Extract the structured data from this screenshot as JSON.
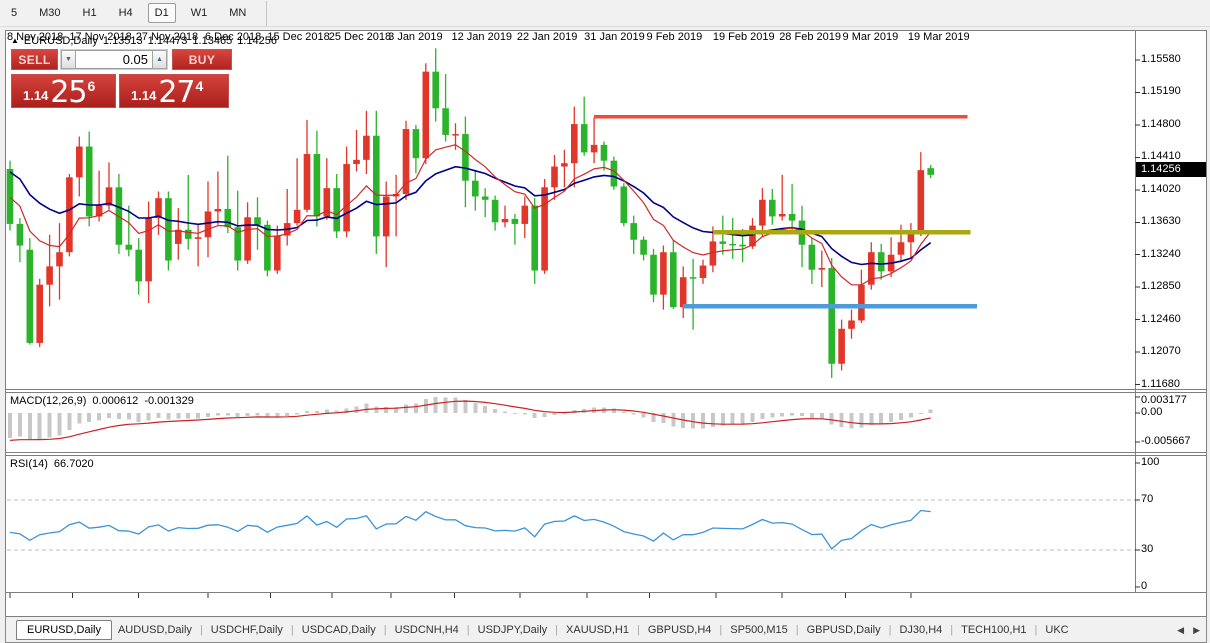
{
  "toolbar": {
    "timeframes": [
      "5",
      "M30",
      "H1",
      "H4",
      "D1",
      "W1",
      "MN"
    ],
    "active": "D1"
  },
  "chart_header": {
    "symbol": "EURUSD,Daily",
    "open": "1.13513",
    "high": "1.14473",
    "low": "1.13465",
    "close": "1.14256"
  },
  "trade_panel": {
    "sell_label": "SELL",
    "buy_label": "BUY",
    "volume": "0.05",
    "sell_price": {
      "prefix": "1.14",
      "big": "25",
      "sup": "6"
    },
    "buy_price": {
      "prefix": "1.14",
      "big": "27",
      "sup": "4"
    }
  },
  "price_axis": {
    "labels": [
      "1.15580",
      "1.15190",
      "1.14800",
      "1.14410",
      "1.14020",
      "1.13630",
      "1.13240",
      "1.12850",
      "1.12460",
      "1.12070",
      "1.11680"
    ],
    "current": "1.14256"
  },
  "macd_panel": {
    "label": "MACD(12,26,9)",
    "value_main": "0.000612",
    "value_signal": "-0.001329",
    "axis": [
      "0.003177",
      "0.00",
      "-0.005667"
    ]
  },
  "rsi_panel": {
    "label": "RSI(14)",
    "value": "66.7020",
    "axis": [
      "100",
      "70",
      "30",
      "0"
    ]
  },
  "time_axis": {
    "labels": [
      {
        "text": "8 Nov 2018",
        "bar": 0
      },
      {
        "text": "17 Nov 2018",
        "bar": 6.3
      },
      {
        "text": "27 Nov 2018",
        "bar": 13
      },
      {
        "text": "6 Dec 2018",
        "bar": 20
      },
      {
        "text": "15 Dec 2018",
        "bar": 26.3
      },
      {
        "text": "25 Dec 2018",
        "bar": 32.5
      },
      {
        "text": "3 Jan 2019",
        "bar": 38.5
      },
      {
        "text": "12 Jan 2019",
        "bar": 44.9
      },
      {
        "text": "22 Jan 2019",
        "bar": 51.5
      },
      {
        "text": "31 Jan 2019",
        "bar": 58.3
      },
      {
        "text": "9 Feb 2019",
        "bar": 64.6
      },
      {
        "text": "19 Feb 2019",
        "bar": 71.3
      },
      {
        "text": "28 Feb 2019",
        "bar": 78
      },
      {
        "text": "9 Mar 2019",
        "bar": 84.4
      },
      {
        "text": "19 Mar 2019",
        "bar": 91
      }
    ]
  },
  "tab_bar": {
    "tabs": [
      "EURUSD,Daily",
      "AUDUSD,Daily",
      "USDCHF,Daily",
      "USDCAD,Daily",
      "USDCNH,H4",
      "USDJPY,Daily",
      "XAUUSD,H1",
      "GBPUSD,H4",
      "SP500,M15",
      "GBPUSD,Daily",
      "DJ30,H4",
      "TECH100,H1",
      "UKC"
    ],
    "active": "EURUSD,Daily"
  },
  "colors": {
    "candle_up": "#e0372a",
    "candle_down": "#2bb32b",
    "ma_fast_red": "#d02828",
    "ma_slow_blue": "#000088",
    "macd_hist": "#c8c8c8",
    "macd_signal": "#cc2222",
    "rsi_line": "#3d93d8",
    "rsi_levels": "#bdbdbd",
    "trade_red": "#c7201e",
    "price_tag_bg": "#000000",
    "frame": "#7e7e7e"
  },
  "chart_data": {
    "type": "candlestick",
    "symbol": "EURUSD",
    "timeframe": "Daily",
    "last_ohlc": {
      "open": 1.13513,
      "high": 1.14473,
      "low": 1.13465,
      "close": 1.14256
    },
    "y_axis_visible_range": [
      1.1168,
      1.1558
    ],
    "overlays": {
      "ma_fast": {
        "type": "EMA",
        "period": 10
      },
      "ma_slow": {
        "type": "EMA",
        "period": 20
      }
    },
    "hlines": [
      {
        "name": "resistance",
        "price": 1.149,
        "from_bar": 59,
        "to_bar": 96.7,
        "color": "#f4483a",
        "width": 3.5
      },
      {
        "name": "pivot",
        "price": 1.1351,
        "from_bar": 71,
        "to_bar": 97.0,
        "color": "#a9a90e",
        "width": 4.5
      },
      {
        "name": "support",
        "price": 1.1262,
        "from_bar": 68,
        "to_bar": 97.7,
        "color": "#4d9bd8",
        "width": 4.5
      }
    ],
    "indicators": [
      {
        "name": "MACD",
        "params": [
          12,
          26,
          9
        ],
        "current_main": 0.000612,
        "current_signal": -0.001329,
        "window_max": 0.003177,
        "window_min": -0.005667
      },
      {
        "name": "RSI",
        "params": [
          14
        ],
        "current": 66.702,
        "levels": [
          70,
          30
        ]
      }
    ],
    "candles": [
      [
        "2018-11-08",
        1.1427,
        1.1437,
        1.1353,
        1.1361
      ],
      [
        "2018-11-09",
        1.1361,
        1.1368,
        1.1315,
        1.1335
      ],
      [
        "2018-11-12",
        1.133,
        1.1344,
        1.1216,
        1.1218
      ],
      [
        "2018-11-13",
        1.1218,
        1.1295,
        1.1213,
        1.1288
      ],
      [
        "2018-11-14",
        1.1288,
        1.1348,
        1.1262,
        1.131
      ],
      [
        "2018-11-15",
        1.131,
        1.1362,
        1.127,
        1.1327
      ],
      [
        "2018-11-16",
        1.1327,
        1.1421,
        1.1322,
        1.1417
      ],
      [
        "2018-11-19",
        1.1417,
        1.1466,
        1.1394,
        1.1454
      ],
      [
        "2018-11-20",
        1.1454,
        1.1472,
        1.1358,
        1.137
      ],
      [
        "2018-11-21",
        1.137,
        1.1425,
        1.1364,
        1.1383
      ],
      [
        "2018-11-22",
        1.1383,
        1.1435,
        1.1378,
        1.1405
      ],
      [
        "2018-11-23",
        1.1405,
        1.1421,
        1.1325,
        1.1336
      ],
      [
        "2018-11-26",
        1.1336,
        1.1383,
        1.1322,
        1.133
      ],
      [
        "2018-11-27",
        1.133,
        1.1344,
        1.1276,
        1.1292
      ],
      [
        "2018-11-28",
        1.1292,
        1.1388,
        1.1266,
        1.1368
      ],
      [
        "2018-11-29",
        1.1368,
        1.14,
        1.1348,
        1.1392
      ],
      [
        "2018-11-30",
        1.1392,
        1.14,
        1.1305,
        1.1317
      ],
      [
        "2018-12-03",
        1.1337,
        1.138,
        1.1318,
        1.1354
      ],
      [
        "2018-12-04",
        1.1354,
        1.142,
        1.133,
        1.1343
      ],
      [
        "2018-12-05",
        1.1343,
        1.136,
        1.131,
        1.1345
      ],
      [
        "2018-12-06",
        1.1345,
        1.1412,
        1.1321,
        1.1376
      ],
      [
        "2018-12-07",
        1.1376,
        1.1424,
        1.136,
        1.1379
      ],
      [
        "2018-12-10",
        1.1379,
        1.1443,
        1.135,
        1.1357
      ],
      [
        "2018-12-11",
        1.1357,
        1.1401,
        1.1305,
        1.1317
      ],
      [
        "2018-12-12",
        1.1317,
        1.1387,
        1.1313,
        1.1369
      ],
      [
        "2018-12-13",
        1.1369,
        1.1393,
        1.133,
        1.136
      ],
      [
        "2018-12-14",
        1.136,
        1.1365,
        1.1298,
        1.1305
      ],
      [
        "2018-12-17",
        1.1305,
        1.1359,
        1.1301,
        1.1347
      ],
      [
        "2018-12-18",
        1.1347,
        1.1403,
        1.1335,
        1.1362
      ],
      [
        "2018-12-19",
        1.1362,
        1.144,
        1.1359,
        1.1378
      ],
      [
        "2018-12-20",
        1.1378,
        1.1486,
        1.1375,
        1.1445
      ],
      [
        "2018-12-21",
        1.1445,
        1.1473,
        1.1358,
        1.137
      ],
      [
        "2018-12-24",
        1.137,
        1.144,
        1.1366,
        1.1404
      ],
      [
        "2018-12-26",
        1.1404,
        1.1421,
        1.1344,
        1.1352
      ],
      [
        "2018-12-27",
        1.1352,
        1.1454,
        1.1345,
        1.1433
      ],
      [
        "2018-12-28",
        1.1433,
        1.1474,
        1.1424,
        1.1438
      ],
      [
        "2018-12-31",
        1.1438,
        1.1497,
        1.1421,
        1.1467
      ],
      [
        "2019-01-02",
        1.1467,
        1.1497,
        1.1325,
        1.1346
      ],
      [
        "2019-01-03",
        1.1346,
        1.1412,
        1.1309,
        1.1394
      ],
      [
        "2019-01-04",
        1.1394,
        1.142,
        1.1346,
        1.1397
      ],
      [
        "2019-01-07",
        1.1397,
        1.1485,
        1.139,
        1.1475
      ],
      [
        "2019-01-08",
        1.1475,
        1.148,
        1.1422,
        1.144
      ],
      [
        "2019-01-09",
        1.144,
        1.1554,
        1.1433,
        1.1544
      ],
      [
        "2019-01-10",
        1.1544,
        1.1572,
        1.1484,
        1.15
      ],
      [
        "2019-01-11",
        1.15,
        1.1541,
        1.146,
        1.1468
      ],
      [
        "2019-01-14",
        1.1468,
        1.1482,
        1.145,
        1.1469
      ],
      [
        "2019-01-15",
        1.1469,
        1.149,
        1.1381,
        1.1413
      ],
      [
        "2019-01-16",
        1.1413,
        1.1426,
        1.1377,
        1.1394
      ],
      [
        "2019-01-17",
        1.1394,
        1.1404,
        1.1369,
        1.139
      ],
      [
        "2019-01-18",
        1.139,
        1.1395,
        1.1353,
        1.1363
      ],
      [
        "2019-01-21",
        1.1363,
        1.1383,
        1.1357,
        1.1367
      ],
      [
        "2019-01-22",
        1.1367,
        1.1373,
        1.1336,
        1.1361
      ],
      [
        "2019-01-23",
        1.1361,
        1.1394,
        1.1344,
        1.1383
      ],
      [
        "2019-01-24",
        1.1383,
        1.1392,
        1.1289,
        1.1305
      ],
      [
        "2019-01-25",
        1.1305,
        1.1415,
        1.1301,
        1.1405
      ],
      [
        "2019-01-28",
        1.1405,
        1.1444,
        1.139,
        1.143
      ],
      [
        "2019-01-29",
        1.143,
        1.145,
        1.1405,
        1.1434
      ],
      [
        "2019-01-30",
        1.1434,
        1.1502,
        1.1405,
        1.1481
      ],
      [
        "2019-01-31",
        1.1481,
        1.1514,
        1.1443,
        1.1447
      ],
      [
        "2019-02-01",
        1.1447,
        1.1489,
        1.1434,
        1.1456
      ],
      [
        "2019-02-04",
        1.1456,
        1.146,
        1.1425,
        1.1437
      ],
      [
        "2019-02-05",
        1.1437,
        1.1442,
        1.1402,
        1.1406
      ],
      [
        "2019-02-06",
        1.1406,
        1.141,
        1.1358,
        1.1362
      ],
      [
        "2019-02-07",
        1.1362,
        1.1371,
        1.1325,
        1.1342
      ],
      [
        "2019-02-08",
        1.1342,
        1.1346,
        1.1317,
        1.1324
      ],
      [
        "2019-02-11",
        1.1324,
        1.1331,
        1.1267,
        1.1276
      ],
      [
        "2019-02-12",
        1.1276,
        1.1335,
        1.1258,
        1.1327
      ],
      [
        "2019-02-13",
        1.1327,
        1.1341,
        1.1259,
        1.1261
      ],
      [
        "2019-02-14",
        1.1261,
        1.131,
        1.1248,
        1.1297
      ],
      [
        "2019-02-15",
        1.1297,
        1.1319,
        1.1234,
        1.1296
      ],
      [
        "2019-02-18",
        1.1296,
        1.1318,
        1.1289,
        1.1311
      ],
      [
        "2019-02-19",
        1.1311,
        1.1358,
        1.1303,
        1.134
      ],
      [
        "2019-02-20",
        1.134,
        1.1371,
        1.1324,
        1.1337
      ],
      [
        "2019-02-21",
        1.1337,
        1.1368,
        1.1319,
        1.1336
      ],
      [
        "2019-02-22",
        1.1336,
        1.1355,
        1.1315,
        1.1334
      ],
      [
        "2019-02-25",
        1.1334,
        1.1368,
        1.1331,
        1.1359
      ],
      [
        "2019-02-26",
        1.1359,
        1.1404,
        1.1345,
        1.139
      ],
      [
        "2019-02-27",
        1.139,
        1.1403,
        1.136,
        1.137
      ],
      [
        "2019-02-28",
        1.137,
        1.142,
        1.1365,
        1.1373
      ],
      [
        "2019-03-01",
        1.1373,
        1.1409,
        1.1352,
        1.1365
      ],
      [
        "2019-03-04",
        1.1365,
        1.1383,
        1.1309,
        1.1336
      ],
      [
        "2019-03-05",
        1.1336,
        1.1344,
        1.1289,
        1.1306
      ],
      [
        "2019-03-06",
        1.1306,
        1.1329,
        1.1285,
        1.1308
      ],
      [
        "2019-03-07",
        1.1308,
        1.132,
        1.1176,
        1.1193
      ],
      [
        "2019-03-08",
        1.1193,
        1.1246,
        1.1185,
        1.1235
      ],
      [
        "2019-03-11",
        1.1235,
        1.1258,
        1.1223,
        1.1245
      ],
      [
        "2019-03-12",
        1.1245,
        1.1306,
        1.1242,
        1.1288
      ],
      [
        "2019-03-13",
        1.1288,
        1.1339,
        1.1282,
        1.1327
      ],
      [
        "2019-03-14",
        1.1327,
        1.1337,
        1.1294,
        1.1304
      ],
      [
        "2019-03-15",
        1.1304,
        1.1345,
        1.1297,
        1.1324
      ],
      [
        "2019-03-18",
        1.1324,
        1.136,
        1.1315,
        1.1339
      ],
      [
        "2019-03-19",
        1.1339,
        1.1362,
        1.132,
        1.1353
      ],
      [
        "2019-03-20",
        1.13513,
        1.14473,
        1.13465,
        1.14256
      ],
      [
        "2019-03-21",
        1.1428,
        1.1432,
        1.1416,
        1.142
      ]
    ]
  }
}
